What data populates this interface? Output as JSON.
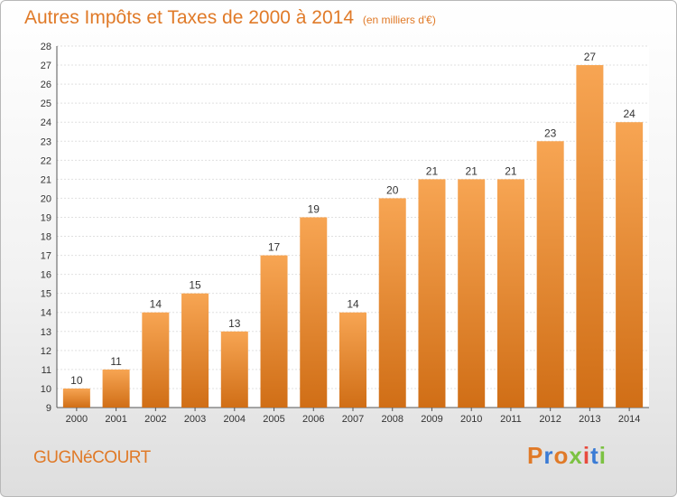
{
  "header": {
    "title": "Autres Impôts et Taxes de 2000 à 2014",
    "subtitle": "(en milliers d'€)"
  },
  "footer": {
    "commune": "GUGNéCOURT",
    "logo": "Proxiti"
  },
  "colors": {
    "accent": "#e07a28",
    "bar_top": "#f7a553",
    "bar_bottom": "#d06e16",
    "logo_letters": [
      "#e07a28",
      "#3a7bd5",
      "#e07a28",
      "#7cc242",
      "#e84a3d",
      "#3a7bd5",
      "#7cc242"
    ]
  },
  "chart_data": {
    "type": "bar",
    "title": "Autres Impôts et Taxes de 2000 à 2014",
    "subtitle": "(en milliers d'€)",
    "categories": [
      "2000",
      "2001",
      "2002",
      "2003",
      "2004",
      "2005",
      "2006",
      "2007",
      "2008",
      "2009",
      "2010",
      "2011",
      "2012",
      "2013",
      "2014"
    ],
    "values": [
      10,
      11,
      14,
      15,
      13,
      17,
      19,
      14,
      20,
      21,
      21,
      21,
      23,
      27,
      24
    ],
    "ylim": [
      9,
      28
    ],
    "yticks": [
      9,
      10,
      11,
      12,
      13,
      14,
      15,
      16,
      17,
      18,
      19,
      20,
      21,
      22,
      23,
      24,
      25,
      26,
      27,
      28
    ],
    "grid": true,
    "data_labels": true
  }
}
